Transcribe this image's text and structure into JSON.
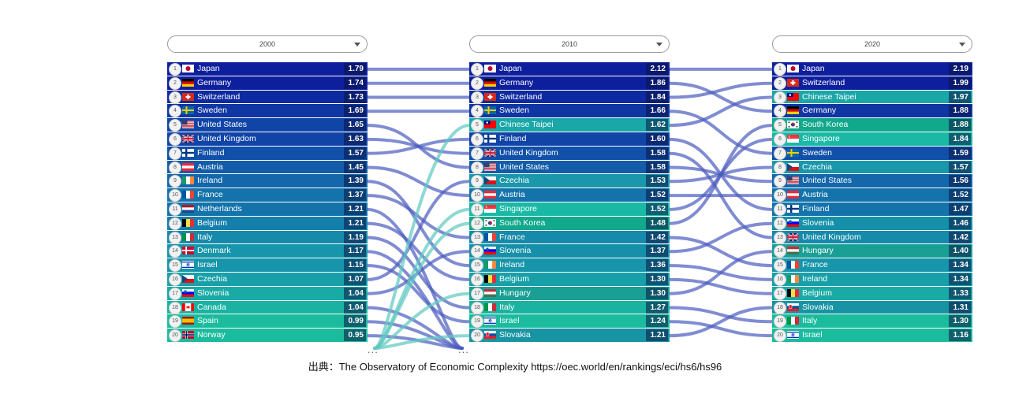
{
  "chart_data": {
    "type": "bump",
    "title": "",
    "columns": [
      {
        "year": "2000",
        "rows": [
          {
            "rank": 1,
            "country": "Japan",
            "value": 1.79,
            "flag": "jp"
          },
          {
            "rank": 2,
            "country": "Germany",
            "value": 1.74,
            "flag": "de"
          },
          {
            "rank": 3,
            "country": "Switzerland",
            "value": 1.73,
            "flag": "ch"
          },
          {
            "rank": 4,
            "country": "Sweden",
            "value": 1.69,
            "flag": "se"
          },
          {
            "rank": 5,
            "country": "United States",
            "value": 1.65,
            "flag": "us"
          },
          {
            "rank": 6,
            "country": "United Kingdom",
            "value": 1.63,
            "flag": "gb"
          },
          {
            "rank": 7,
            "country": "Finland",
            "value": 1.57,
            "flag": "fi"
          },
          {
            "rank": 8,
            "country": "Austria",
            "value": 1.45,
            "flag": "at"
          },
          {
            "rank": 9,
            "country": "Ireland",
            "value": 1.39,
            "flag": "ie"
          },
          {
            "rank": 10,
            "country": "France",
            "value": 1.37,
            "flag": "fr"
          },
          {
            "rank": 11,
            "country": "Netherlands",
            "value": 1.21,
            "flag": "nl"
          },
          {
            "rank": 12,
            "country": "Belgium",
            "value": 1.21,
            "flag": "be"
          },
          {
            "rank": 13,
            "country": "Italy",
            "value": 1.19,
            "flag": "it"
          },
          {
            "rank": 14,
            "country": "Denmark",
            "value": 1.17,
            "flag": "dk"
          },
          {
            "rank": 15,
            "country": "Israel",
            "value": 1.15,
            "flag": "il"
          },
          {
            "rank": 16,
            "country": "Czechia",
            "value": 1.07,
            "flag": "cz"
          },
          {
            "rank": 17,
            "country": "Slovenia",
            "value": 1.04,
            "flag": "si"
          },
          {
            "rank": 18,
            "country": "Canada",
            "value": 1.04,
            "flag": "ca"
          },
          {
            "rank": 19,
            "country": "Spain",
            "value": 0.99,
            "flag": "es"
          },
          {
            "rank": 20,
            "country": "Norway",
            "value": 0.95,
            "flag": "no"
          }
        ]
      },
      {
        "year": "2010",
        "rows": [
          {
            "rank": 1,
            "country": "Japan",
            "value": 2.12,
            "flag": "jp"
          },
          {
            "rank": 2,
            "country": "Germany",
            "value": 1.86,
            "flag": "de"
          },
          {
            "rank": 3,
            "country": "Switzerland",
            "value": 1.84,
            "flag": "ch"
          },
          {
            "rank": 4,
            "country": "Sweden",
            "value": 1.66,
            "flag": "se"
          },
          {
            "rank": 5,
            "country": "Chinese Taipei",
            "value": 1.62,
            "flag": "tw"
          },
          {
            "rank": 6,
            "country": "Finland",
            "value": 1.6,
            "flag": "fi"
          },
          {
            "rank": 7,
            "country": "United Kingdom",
            "value": 1.58,
            "flag": "gb"
          },
          {
            "rank": 8,
            "country": "United States",
            "value": 1.58,
            "flag": "us"
          },
          {
            "rank": 9,
            "country": "Czechia",
            "value": 1.53,
            "flag": "cz"
          },
          {
            "rank": 10,
            "country": "Austria",
            "value": 1.52,
            "flag": "at"
          },
          {
            "rank": 11,
            "country": "Singapore",
            "value": 1.52,
            "flag": "sg"
          },
          {
            "rank": 12,
            "country": "South Korea",
            "value": 1.48,
            "flag": "kr"
          },
          {
            "rank": 13,
            "country": "France",
            "value": 1.42,
            "flag": "fr"
          },
          {
            "rank": 14,
            "country": "Slovenia",
            "value": 1.37,
            "flag": "si"
          },
          {
            "rank": 15,
            "country": "Ireland",
            "value": 1.36,
            "flag": "ie"
          },
          {
            "rank": 16,
            "country": "Belgium",
            "value": 1.3,
            "flag": "be"
          },
          {
            "rank": 17,
            "country": "Hungary",
            "value": 1.3,
            "flag": "hu"
          },
          {
            "rank": 18,
            "country": "Italy",
            "value": 1.27,
            "flag": "it"
          },
          {
            "rank": 19,
            "country": "Israel",
            "value": 1.24,
            "flag": "il"
          },
          {
            "rank": 20,
            "country": "Slovakia",
            "value": 1.21,
            "flag": "sk"
          }
        ]
      },
      {
        "year": "2020",
        "rows": [
          {
            "rank": 1,
            "country": "Japan",
            "value": 2.19,
            "flag": "jp"
          },
          {
            "rank": 2,
            "country": "Switzerland",
            "value": 1.99,
            "flag": "ch"
          },
          {
            "rank": 3,
            "country": "Chinese Taipei",
            "value": 1.97,
            "flag": "tw"
          },
          {
            "rank": 4,
            "country": "Germany",
            "value": 1.88,
            "flag": "de"
          },
          {
            "rank": 5,
            "country": "South Korea",
            "value": 1.88,
            "flag": "kr"
          },
          {
            "rank": 6,
            "country": "Singapore",
            "value": 1.84,
            "flag": "sg"
          },
          {
            "rank": 7,
            "country": "Sweden",
            "value": 1.59,
            "flag": "se"
          },
          {
            "rank": 8,
            "country": "Czechia",
            "value": 1.57,
            "flag": "cz"
          },
          {
            "rank": 9,
            "country": "United States",
            "value": 1.56,
            "flag": "us"
          },
          {
            "rank": 10,
            "country": "Austria",
            "value": 1.52,
            "flag": "at"
          },
          {
            "rank": 11,
            "country": "Finland",
            "value": 1.47,
            "flag": "fi"
          },
          {
            "rank": 12,
            "country": "Slovenia",
            "value": 1.46,
            "flag": "si"
          },
          {
            "rank": 13,
            "country": "United Kingdom",
            "value": 1.42,
            "flag": "gb"
          },
          {
            "rank": 14,
            "country": "Hungary",
            "value": 1.4,
            "flag": "hu"
          },
          {
            "rank": 15,
            "country": "France",
            "value": 1.34,
            "flag": "fr"
          },
          {
            "rank": 16,
            "country": "Ireland",
            "value": 1.34,
            "flag": "ie"
          },
          {
            "rank": 17,
            "country": "Belgium",
            "value": 1.33,
            "flag": "be"
          },
          {
            "rank": 18,
            "country": "Slovakia",
            "value": 1.31,
            "flag": "sk"
          },
          {
            "rank": 19,
            "country": "Italy",
            "value": 1.3,
            "flag": "it"
          },
          {
            "rank": 20,
            "country": "Israel",
            "value": 1.16,
            "flag": "il"
          }
        ]
      }
    ],
    "row_colors": [
      "#0d1f9c",
      "#0e2aa0",
      "#0f36a3",
      "#1044a6",
      "#1150a9",
      "#125ca9",
      "#1367aa",
      "#1473ab",
      "#157fab",
      "#168aab",
      "#1795aa",
      "#18a0a8",
      "#19aaa5",
      "#1ab3a2",
      "#1bbb9e",
      "#1cc39a"
    ],
    "highlight_colors": {
      "tw": "#1aa7a8",
      "sg": "#1ab9a6",
      "kr": "#11a88c",
      "hu": "#1a9f95",
      "sk": "#1794a3",
      "si": "#1590a8",
      "cz": "#1a97aa"
    },
    "link_color_default": "#4a5bbf",
    "link_color_new": "#5cc8c0"
  },
  "footer": {
    "source_caption": "出典：The Observatory of Economic Complexity https://oec.world/en/rankings/eci/hs6/hs96",
    "more_marker": "..."
  }
}
